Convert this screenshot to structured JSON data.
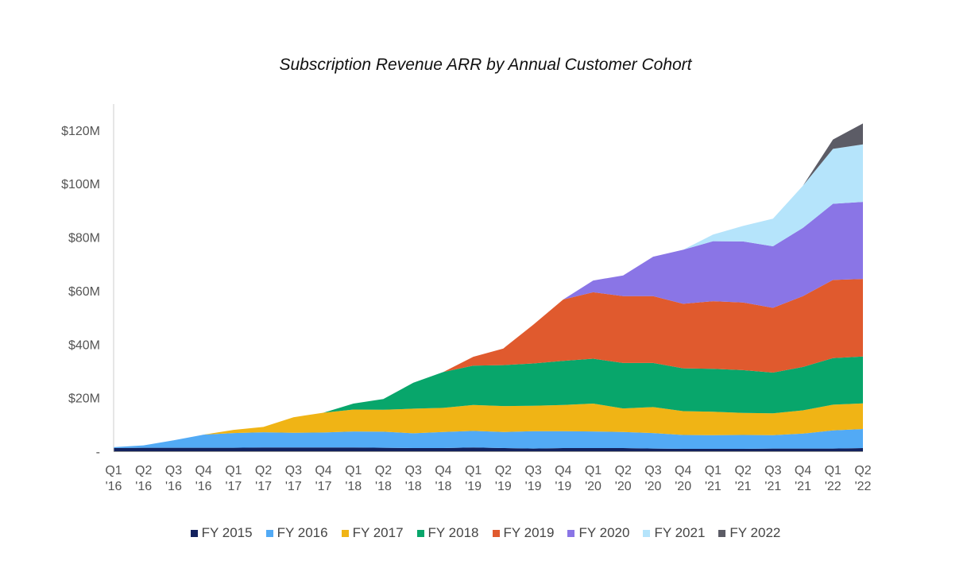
{
  "chart_data": {
    "type": "area",
    "stacked": true,
    "title": "Subscription Revenue ARR by Annual Customer Cohort",
    "categories": [
      [
        "Q1",
        "'16"
      ],
      [
        "Q2",
        "'16"
      ],
      [
        "Q3",
        "'16"
      ],
      [
        "Q4",
        "'16"
      ],
      [
        "Q1",
        "'17"
      ],
      [
        "Q2",
        "'17"
      ],
      [
        "Q3",
        "'17"
      ],
      [
        "Q4",
        "'17"
      ],
      [
        "Q1",
        "'18"
      ],
      [
        "Q2",
        "'18"
      ],
      [
        "Q3",
        "'18"
      ],
      [
        "Q4",
        "'18"
      ],
      [
        "Q1",
        "'19"
      ],
      [
        "Q2",
        "'19"
      ],
      [
        "Q3",
        "'19"
      ],
      [
        "Q4",
        "'19"
      ],
      [
        "Q1",
        "'20"
      ],
      [
        "Q2",
        "'20"
      ],
      [
        "Q3",
        "'20"
      ],
      [
        "Q4",
        "'20"
      ],
      [
        "Q1",
        "'21"
      ],
      [
        "Q2",
        "'21"
      ],
      [
        "Q3",
        "'21"
      ],
      [
        "Q4",
        "'21"
      ],
      [
        "Q1",
        "'22"
      ],
      [
        "Q2",
        "'22"
      ]
    ],
    "yticks": [
      {
        "value": 0,
        "label": "-"
      },
      {
        "value": 20,
        "label": "$20M"
      },
      {
        "value": 40,
        "label": "$40M"
      },
      {
        "value": 60,
        "label": "$60M"
      },
      {
        "value": 80,
        "label": "$80M"
      },
      {
        "value": 100,
        "label": "$100M"
      },
      {
        "value": 120,
        "label": "$120M"
      }
    ],
    "ylim": [
      0,
      130
    ],
    "unit": "$M",
    "legend_position": "bottom",
    "series": [
      {
        "name": "FY 2015",
        "color": "#13225e",
        "values": [
          1.2,
          1.3,
          1.3,
          1.3,
          1.3,
          1.4,
          1.4,
          1.4,
          1.4,
          1.3,
          1.2,
          1.2,
          1.4,
          1.2,
          1.0,
          1.2,
          1.2,
          1.2,
          1.0,
          0.9,
          0.9,
          0.9,
          1.0,
          1.0,
          1.0,
          1.2
        ]
      },
      {
        "name": "FY 2016",
        "color": "#52aaf5",
        "values": [
          0.3,
          0.9,
          2.8,
          4.9,
          5.5,
          5.7,
          5.5,
          5.6,
          6.0,
          6.0,
          5.5,
          6.0,
          6.2,
          6.0,
          6.5,
          6.3,
          6.2,
          6.0,
          5.8,
          5.2,
          5.1,
          5.2,
          5.0,
          5.6,
          6.8,
          7.1
        ]
      },
      {
        "name": "FY 2017",
        "color": "#f0b415",
        "values": [
          0,
          0,
          0,
          0,
          1.2,
          2.0,
          5.8,
          7.4,
          8.2,
          8.2,
          9.2,
          9.0,
          9.7,
          9.7,
          9.5,
          9.8,
          10.4,
          8.8,
          9.7,
          8.9,
          8.8,
          8.2,
          8.2,
          8.7,
          9.6,
          9.6
        ]
      },
      {
        "name": "FY 2018",
        "color": "#08a66b",
        "values": [
          0,
          0,
          0,
          0,
          0,
          0,
          0,
          0,
          2.2,
          4.0,
          9.7,
          13.4,
          14.7,
          15.3,
          15.8,
          16.5,
          16.8,
          17.0,
          16.5,
          16.0,
          16.0,
          16.0,
          15.2,
          16.2,
          17.4,
          17.5
        ]
      },
      {
        "name": "FY 2019",
        "color": "#e05a2e",
        "values": [
          0,
          0,
          0,
          0,
          0,
          0,
          0,
          0,
          0,
          0,
          0,
          0,
          3.3,
          6.2,
          14.5,
          22.9,
          24.8,
          25.0,
          25.0,
          24.1,
          25.3,
          25.3,
          24.2,
          26.5,
          29.2,
          29.0
        ]
      },
      {
        "name": "FY 2020",
        "color": "#8a75e6",
        "values": [
          0,
          0,
          0,
          0,
          0,
          0,
          0,
          0,
          0,
          0,
          0,
          0,
          0,
          0,
          0,
          0,
          4.4,
          7.7,
          14.7,
          20.2,
          22.4,
          22.8,
          23.0,
          25.5,
          28.5,
          28.8
        ]
      },
      {
        "name": "FY 2021",
        "color": "#b5e4fb",
        "values": [
          0,
          0,
          0,
          0,
          0,
          0,
          0,
          0,
          0,
          0,
          0,
          0,
          0,
          0,
          0,
          0,
          0,
          0,
          0,
          0,
          2.5,
          5.8,
          10.3,
          15.8,
          20.5,
          21.5
        ]
      },
      {
        "name": "FY 2022",
        "color": "#5c5c66",
        "values": [
          0,
          0,
          0,
          0,
          0,
          0,
          0,
          0,
          0,
          0,
          0,
          0,
          0,
          0,
          0,
          0,
          0,
          0,
          0,
          0,
          0,
          0,
          0,
          0,
          3.5,
          7.8
        ]
      }
    ]
  }
}
